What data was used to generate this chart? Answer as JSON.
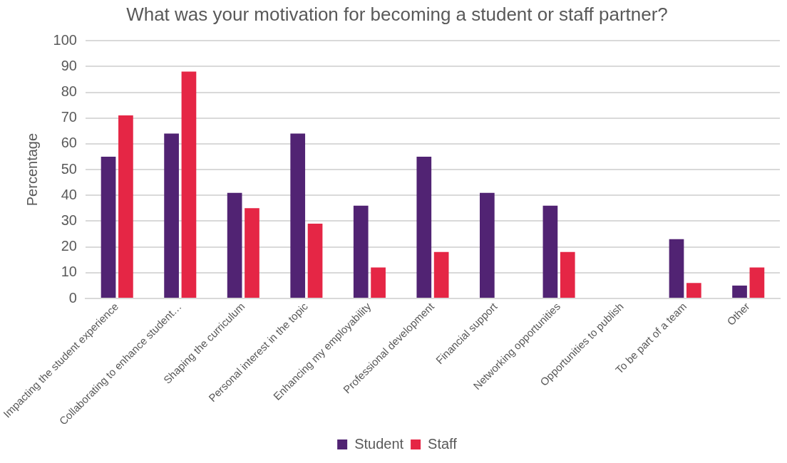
{
  "chart_data": {
    "type": "bar",
    "title": "What was your motivation for becoming a student or staff partner?",
    "ylabel": "Percentage",
    "categories": [
      "Impacting the student experience",
      "Collaborating to enhance student…",
      "Shaping the curriculum",
      "Personal interest in the topic",
      "Enhancing my employability",
      "Professional development",
      "Financial support",
      "Networking opportunities",
      "Opportunities to publish",
      "To be part of a team",
      "Other"
    ],
    "series": [
      {
        "name": "Student",
        "color": "#512373",
        "values": [
          55,
          64,
          41,
          64,
          36,
          55,
          41,
          36,
          0,
          23,
          5
        ]
      },
      {
        "name": "Staff",
        "color": "#e52645",
        "values": [
          71,
          88,
          35,
          29,
          12,
          18,
          0,
          18,
          0,
          6,
          12
        ]
      }
    ],
    "ylim": [
      0,
      100
    ],
    "yticks": [
      0,
      10,
      20,
      30,
      40,
      50,
      60,
      70,
      80,
      90,
      100
    ],
    "grid": "y",
    "legend": "bottom"
  }
}
